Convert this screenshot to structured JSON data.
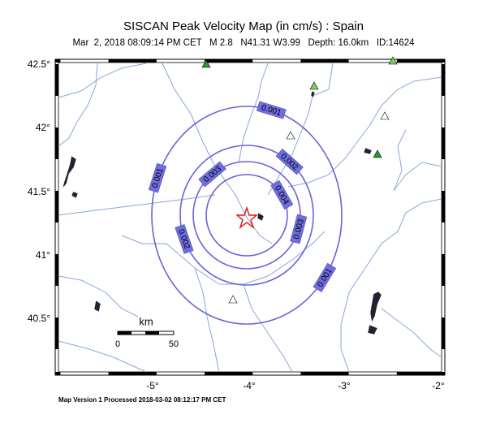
{
  "header": {
    "title": "SISCAN Peak Velocity Map (in cm/s) : Spain",
    "subtitle": "Mar  2, 2018 08:09:14 PM CET   M 2.8   N41.31 W3.99   Depth: 16.0km   ID:14624"
  },
  "map": {
    "lat_labels": [
      "42.5°",
      "42°",
      "41.5°",
      "41°",
      "40.5°"
    ],
    "lon_labels": [
      "-5°",
      "-4°",
      "-3°",
      "-2°"
    ],
    "contours": [
      {
        "level": "0.001",
        "labels": 3
      },
      {
        "level": "0.002",
        "labels": 2
      },
      {
        "level": "0.003",
        "labels": 2
      },
      {
        "level": "0.004",
        "labels": 1
      }
    ],
    "scale": {
      "unit": "km",
      "start": "0",
      "end": "50"
    }
  },
  "footer": "Map Version 1 Processed 2018-03-02 08:12:17 PM CET"
}
